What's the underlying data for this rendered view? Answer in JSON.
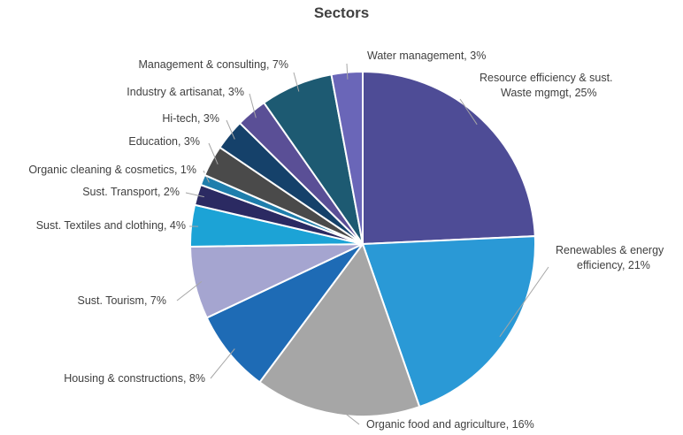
{
  "chart_data": {
    "type": "pie",
    "title": "Sectors",
    "slices": [
      {
        "name": "Resource efficiency & sust. Waste mgmgt",
        "value": 25,
        "label": [
          "Resource efficiency & sust.",
          "Waste mgmgt, 25%"
        ],
        "color": "#4e4c96"
      },
      {
        "name": "Renewables & energy efficiency",
        "value": 21,
        "label": [
          "Renewables & energy",
          "efficiency, 21%"
        ],
        "color": "#2a99d6"
      },
      {
        "name": "Organic food and agriculture",
        "value": 16,
        "label": [
          "Organic food and agriculture, 16%"
        ],
        "color": "#a6a6a6"
      },
      {
        "name": "Housing & constructions",
        "value": 8,
        "label": [
          "Housing & constructions, 8%"
        ],
        "color": "#1e6bb5"
      },
      {
        "name": "Sust. Tourism",
        "value": 7,
        "label": [
          "Sust. Tourism, 7%"
        ],
        "color": "#a5a5d0"
      },
      {
        "name": "Sust. Textiles and clothing",
        "value": 4,
        "label": [
          "Sust. Textiles and clothing, 4%"
        ],
        "color": "#1ca3d6"
      },
      {
        "name": "Sust. Transport",
        "value": 2,
        "label": [
          "Sust. Transport, 2%"
        ],
        "color": "#2b2a62"
      },
      {
        "name": "Organic cleaning & cosmetics",
        "value": 1,
        "label": [
          "Organic cleaning & cosmetics, 1%"
        ],
        "color": "#1f7eac"
      },
      {
        "name": "Education",
        "value": 3,
        "label": [
          "Education, 3%"
        ],
        "color": "#4a4a4a"
      },
      {
        "name": "Hi-tech",
        "value": 3,
        "label": [
          "Hi-tech, 3%"
        ],
        "color": "#15416a"
      },
      {
        "name": "Industry & artisanat",
        "value": 3,
        "label": [
          "Industry & artisanat, 3%"
        ],
        "color": "#5a4f96"
      },
      {
        "name": "Management & consulting",
        "value": 7,
        "label": [
          "Management & consulting, 7%"
        ],
        "color": "#1d5a72"
      },
      {
        "name": "Water management",
        "value": 3,
        "label": [
          "Water management, 3%"
        ],
        "color": "#6a66b8"
      }
    ]
  }
}
